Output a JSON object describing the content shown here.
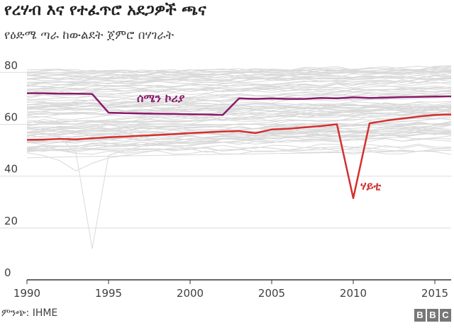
{
  "header": {
    "title": "የረሃብ እና የተፈጥሮ አደጋዎች ጫና",
    "subtitle": "የዕድሜ ጣራ ከውልደት ጀምሮ በሃገራት"
  },
  "footer": {
    "source": "ምንጭ: IHME",
    "logo_letters": [
      "B",
      "B",
      "C"
    ]
  },
  "colors": {
    "background_lines": "#d9d9d9",
    "north_korea": "#8a1a6a",
    "haiti": "#d3302f",
    "axis": "#333333",
    "grid": "#dddddd"
  },
  "chart_data": {
    "type": "line",
    "title": "የረሃብ እና የተፈጥሮ አደጋዎች ጫና",
    "subtitle": "የዕድሜ ጣራ ከውልደት ጀምሮ በሃገራት",
    "xlabel": "",
    "ylabel": "",
    "xlim": [
      1990,
      2016
    ],
    "ylim": [
      0,
      85
    ],
    "x_ticks": [
      1990,
      1995,
      2000,
      2005,
      2010,
      2015
    ],
    "y_ticks": [
      0,
      20,
      40,
      60,
      80
    ],
    "grid": "horizontal",
    "x": [
      1990,
      1991,
      1992,
      1993,
      1994,
      1995,
      1996,
      1997,
      1998,
      1999,
      2000,
      2001,
      2002,
      2003,
      2004,
      2005,
      2006,
      2007,
      2008,
      2009,
      2010,
      2011,
      2012,
      2013,
      2014,
      2015,
      2016
    ],
    "series": [
      {
        "name": "ሰሜን ኮሪያ",
        "highlight": true,
        "values": [
          72.0,
          72.0,
          71.8,
          71.8,
          71.7,
          64.5,
          64.3,
          64.2,
          64.1,
          64.0,
          63.9,
          63.8,
          63.6,
          70.0,
          69.8,
          70.0,
          69.8,
          69.8,
          70.2,
          70.0,
          70.4,
          70.2,
          70.3,
          70.5,
          70.6,
          70.7,
          70.8
        ]
      },
      {
        "name": "ሃይቲ",
        "highlight": true,
        "values": [
          54.0,
          54.1,
          54.4,
          54.2,
          54.6,
          55.0,
          55.3,
          55.6,
          55.9,
          56.2,
          56.6,
          56.9,
          57.2,
          57.4,
          56.6,
          58.0,
          58.3,
          58.8,
          59.3,
          60.0,
          31.5,
          60.4,
          61.4,
          62.2,
          63.0,
          63.6,
          63.8
        ]
      },
      {
        "name": "",
        "highlight": false,
        "values": [
          57.0,
          56.5,
          55.0,
          49.0,
          12.0,
          48.0,
          50.0,
          51.5,
          52.5,
          53.5,
          54.5,
          55.0,
          55.5,
          56.0,
          56.5,
          57.0,
          57.5,
          58.0,
          58.5,
          59.0,
          59.5,
          60.0,
          60.5,
          61.0,
          61.5,
          62.0,
          62.5
        ]
      },
      {
        "name": "",
        "highlight": false,
        "values": [
          49.0,
          48.0,
          46.0,
          42.0,
          45.0,
          47.0,
          48.0,
          49.0,
          50.0,
          51.0,
          52.0,
          52.5,
          53.0,
          53.5,
          54.0,
          54.5,
          55.0,
          55.5,
          56.0,
          56.5,
          57.0,
          57.5,
          58.0,
          58.5,
          59.0,
          59.5,
          60.0
        ]
      },
      {
        "name": "",
        "highlight": false,
        "values": [
          47.0,
          47.2,
          47.4,
          47.5,
          47.6,
          47.7,
          47.8,
          47.9,
          48.0,
          48.1,
          48.2,
          48.3,
          48.4,
          48.5,
          48.6,
          48.7,
          48.8,
          48.9,
          49.0,
          49.1,
          49.2,
          49.3,
          49.4,
          49.5,
          49.6,
          49.8,
          50.0
        ]
      }
    ]
  }
}
